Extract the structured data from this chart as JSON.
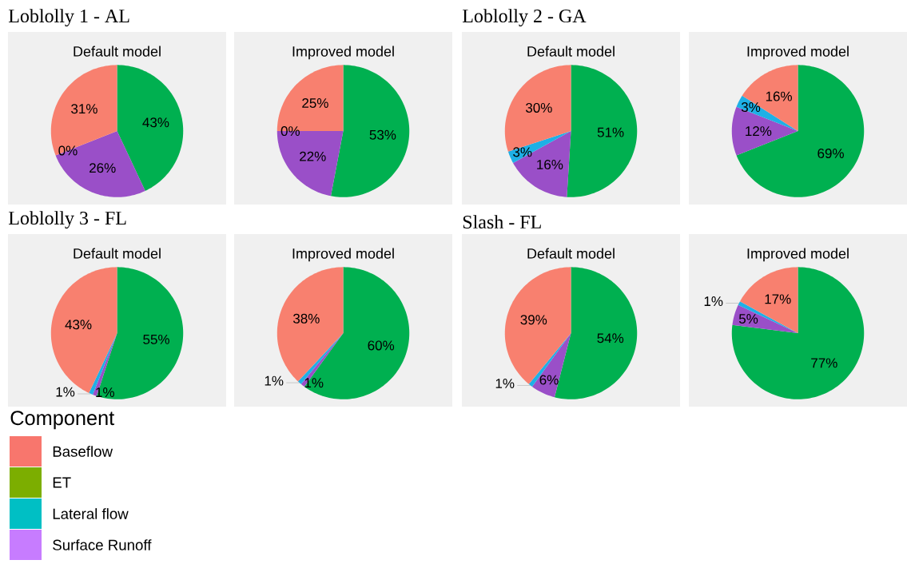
{
  "chart_data": [
    {
      "type": "pie",
      "title": "Default model",
      "annotations": [
        "Loblolly 1 - AL"
      ],
      "values": [
        43,
        26,
        0,
        31
      ],
      "value_labels": [
        "43%",
        "26%",
        "0%",
        "31%"
      ],
      "colors": [
        "#00b050",
        "#9a4fc8",
        "#1eb0e6",
        "#f8806f"
      ]
    },
    {
      "type": "pie",
      "title": "Improved model",
      "values": [
        53,
        22,
        0,
        25
      ],
      "value_labels": [
        "53%",
        "22%",
        "0%",
        "25%"
      ],
      "colors": [
        "#00b050",
        "#9a4fc8",
        "#1eb0e6",
        "#f8806f"
      ]
    },
    {
      "type": "pie",
      "title": "Default model",
      "annotations": [
        "Loblolly 2 - GA"
      ],
      "values": [
        51,
        16,
        3,
        30
      ],
      "value_labels": [
        "51%",
        "16%",
        "3%",
        "30%"
      ],
      "colors": [
        "#00b050",
        "#9a4fc8",
        "#1eb0e6",
        "#f8806f"
      ]
    },
    {
      "type": "pie",
      "title": "Improved model",
      "values": [
        69,
        12,
        3,
        16
      ],
      "value_labels": [
        "69%",
        "12%",
        "3%",
        "16%"
      ],
      "colors": [
        "#00b050",
        "#9a4fc8",
        "#1eb0e6",
        "#f8806f"
      ]
    },
    {
      "type": "pie",
      "title": "Default model",
      "annotations": [
        "Loblolly 3 - FL"
      ],
      "values": [
        55,
        1,
        1,
        43
      ],
      "value_labels": [
        "55%",
        "1%",
        "1%",
        "43%"
      ],
      "colors": [
        "#00b050",
        "#9a4fc8",
        "#1eb0e6",
        "#f8806f"
      ]
    },
    {
      "type": "pie",
      "title": "Improved model",
      "values": [
        60,
        1,
        1,
        38
      ],
      "value_labels": [
        "60%",
        "1%",
        "1%",
        "38%"
      ],
      "colors": [
        "#00b050",
        "#9a4fc8",
        "#1eb0e6",
        "#f8806f"
      ]
    },
    {
      "type": "pie",
      "title": "Default model",
      "annotations": [
        "Slash - FL"
      ],
      "values": [
        54,
        6,
        1,
        39
      ],
      "value_labels": [
        "54%",
        "6%",
        "1%",
        "39%"
      ],
      "colors": [
        "#00b050",
        "#9a4fc8",
        "#1eb0e6",
        "#f8806f"
      ]
    },
    {
      "type": "pie",
      "title": "Improved model",
      "values": [
        77,
        5,
        1,
        17
      ],
      "value_labels": [
        "77%",
        "5%",
        "1%",
        "17%"
      ],
      "colors": [
        "#00b050",
        "#9a4fc8",
        "#1eb0e6",
        "#f8806f"
      ]
    },
    {
      "type": "other",
      "legend_title": "Component",
      "categories": [
        "Baseflow",
        "ET",
        "Lateral flow",
        "Surface Runoff"
      ],
      "colors": [
        "#f8766d",
        "#7cae00",
        "#00bfc4",
        "#c77cff"
      ]
    }
  ]
}
